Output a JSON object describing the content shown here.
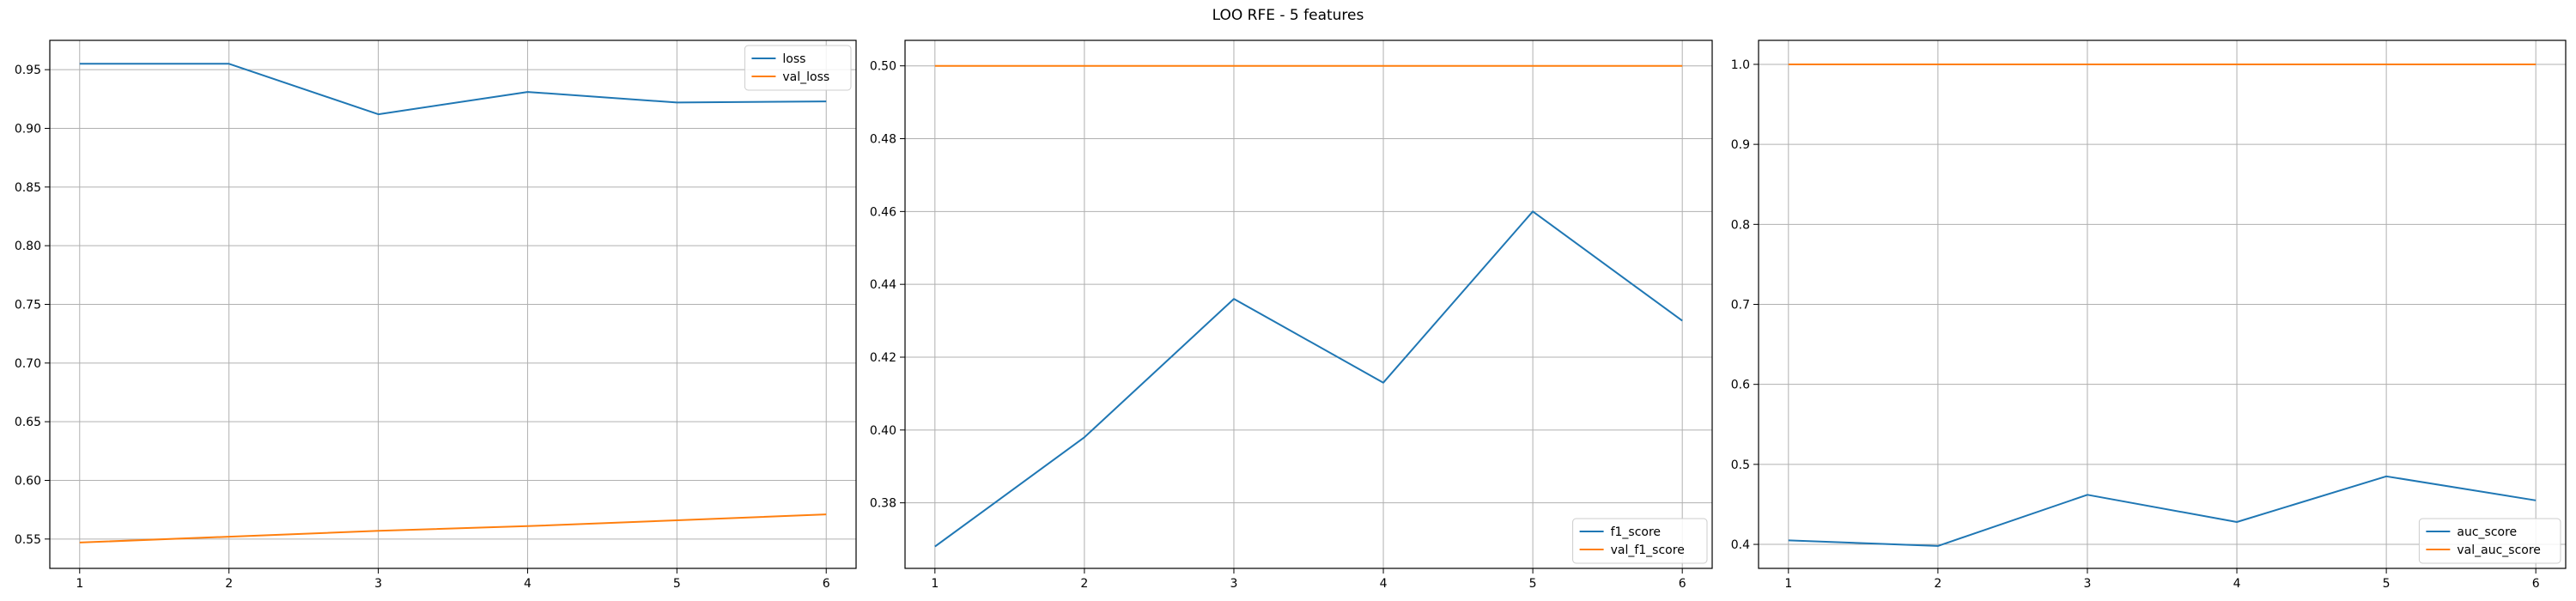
{
  "figure": {
    "title": "LOO RFE - 5 features"
  },
  "chart_data": [
    {
      "type": "line",
      "x": [
        1,
        2,
        3,
        4,
        5,
        6
      ],
      "xticks": [
        1,
        2,
        3,
        4,
        5,
        6
      ],
      "ylim": [
        0.525,
        0.975
      ],
      "yticks": [
        0.55,
        0.6,
        0.65,
        0.7,
        0.75,
        0.8,
        0.85,
        0.9,
        0.95
      ],
      "ytick_labels": [
        "0.55",
        "0.60",
        "0.65",
        "0.70",
        "0.75",
        "0.80",
        "0.85",
        "0.90",
        "0.95"
      ],
      "grid": true,
      "legend_position": "upper right",
      "series": [
        {
          "name": "loss",
          "color": "#1f77b4",
          "values": [
            0.955,
            0.955,
            0.912,
            0.931,
            0.922,
            0.923
          ]
        },
        {
          "name": "val_loss",
          "color": "#ff7f0e",
          "values": [
            0.547,
            0.552,
            0.557,
            0.561,
            0.566,
            0.571
          ]
        }
      ]
    },
    {
      "type": "line",
      "x": [
        1,
        2,
        3,
        4,
        5,
        6
      ],
      "xticks": [
        1,
        2,
        3,
        4,
        5,
        6
      ],
      "ylim": [
        0.362,
        0.507
      ],
      "yticks": [
        0.38,
        0.4,
        0.42,
        0.44,
        0.46,
        0.48,
        0.5
      ],
      "ytick_labels": [
        "0.38",
        "0.40",
        "0.42",
        "0.44",
        "0.46",
        "0.48",
        "0.50"
      ],
      "grid": true,
      "legend_position": "lower right",
      "series": [
        {
          "name": "f1_score",
          "color": "#1f77b4",
          "values": [
            0.368,
            0.398,
            0.436,
            0.413,
            0.46,
            0.43
          ]
        },
        {
          "name": "val_f1_score",
          "color": "#ff7f0e",
          "values": [
            0.5,
            0.5,
            0.5,
            0.5,
            0.5,
            0.5
          ]
        }
      ]
    },
    {
      "type": "line",
      "x": [
        1,
        2,
        3,
        4,
        5,
        6
      ],
      "xticks": [
        1,
        2,
        3,
        4,
        5,
        6
      ],
      "ylim": [
        0.37,
        1.03
      ],
      "yticks": [
        0.4,
        0.5,
        0.6,
        0.7,
        0.8,
        0.9,
        1.0
      ],
      "ytick_labels": [
        "0.4",
        "0.5",
        "0.6",
        "0.7",
        "0.8",
        "0.9",
        "1.0"
      ],
      "grid": true,
      "legend_position": "lower right",
      "series": [
        {
          "name": "auc_score",
          "color": "#1f77b4",
          "values": [
            0.405,
            0.398,
            0.462,
            0.428,
            0.485,
            0.455
          ]
        },
        {
          "name": "val_auc_score",
          "color": "#ff7f0e",
          "values": [
            1.0,
            1.0,
            1.0,
            1.0,
            1.0,
            1.0
          ]
        }
      ]
    }
  ]
}
